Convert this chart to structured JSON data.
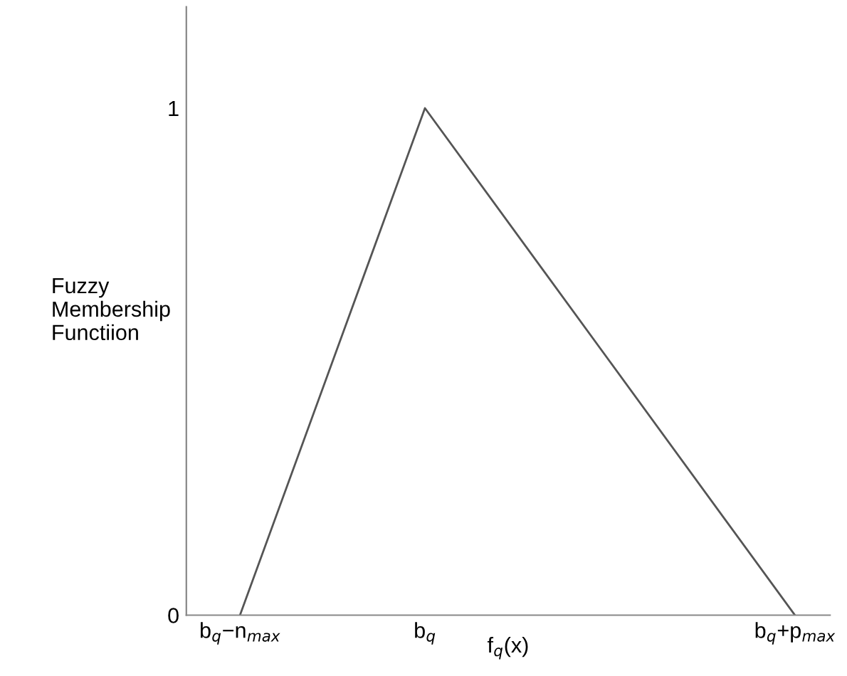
{
  "chart_data": {
    "type": "line",
    "xlabel": "f$_{q}$(x)",
    "ylabel": "Fuzzy\nMembership\nFunctiion",
    "categories": [
      "b$_{q}$−n$_{max}$",
      "b$_{q}$",
      null,
      "b$_{q}$+p$_{max}$"
    ],
    "series": [
      {
        "color": "#555555",
        "values": [
          0,
          1,
          0.5,
          0
        ]
      }
    ],
    "ylim": [
      0,
      1.2
    ],
    "yticks": [
      0,
      1
    ],
    "grid": false,
    "legend": false,
    "marker": "none",
    "line_style": "solid"
  }
}
